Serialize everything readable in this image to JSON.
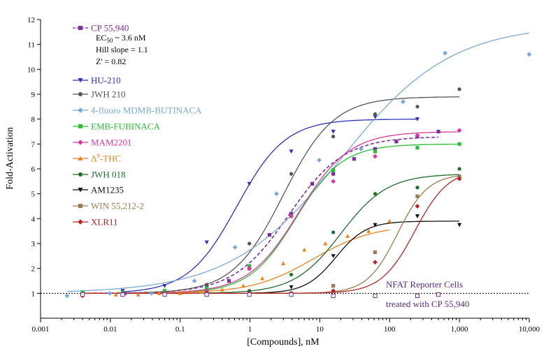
{
  "chart_data": {
    "type": "scatter",
    "xlabel": "[Compounds], nM",
    "ylabel": "Fold-Activation",
    "x_scale": "log",
    "xlim": [
      0.001,
      10000
    ],
    "ylim": [
      0,
      12
    ],
    "x_ticks": [
      "0.001",
      "0.01",
      "0.1",
      "1",
      "10",
      "100",
      "1,000",
      "10,000"
    ],
    "y_ticks": [
      "1",
      "2",
      "3",
      "4",
      "5",
      "6",
      "7",
      "8",
      "9",
      "10",
      "11",
      "12"
    ],
    "grid": false,
    "legend_position": "top-left",
    "baseline_y": 1,
    "stats": {
      "ec50_prefix": "EC",
      "ec50_sub": "50",
      "ec50_rest": " ~ 3.6 nM",
      "hill": "Hill slope = 1.1",
      "z": "Z' = 0.82"
    },
    "annotations": [
      "NFAT Reporter Cells",
      "treated with CP 55,940"
    ],
    "series": [
      {
        "name": "CP 55,940",
        "color": "#7b2f9e",
        "marker": "square",
        "dashed": true,
        "x": [
          0.004,
          0.016,
          0.06,
          0.24,
          0.5,
          0.98,
          1.9,
          3.9,
          7.8,
          15.6,
          31,
          62,
          125,
          250,
          500
        ],
        "y": [
          1.0,
          1.0,
          1.0,
          1.3,
          1.5,
          2.0,
          3.35,
          4.2,
          5.4,
          5.8,
          6.4,
          6.8,
          7.1,
          7.3,
          7.5
        ],
        "fit": {
          "bottom": 1.0,
          "top": 7.3,
          "ec50": 3.6,
          "hill": 1.1
        }
      },
      {
        "name": "HU-210",
        "color": "#2c32b5",
        "marker": "triangle-down",
        "x": [
          0.015,
          0.06,
          0.24,
          0.98,
          3.9,
          15.6,
          62,
          250
        ],
        "y": [
          1.1,
          1.3,
          3.05,
          5.4,
          6.7,
          7.5,
          8.1,
          8.0
        ],
        "fit": {
          "bottom": 1.0,
          "top": 8.0,
          "ec50": 0.65,
          "hill": 1.25
        }
      },
      {
        "name": "JWH 210",
        "color": "#555555",
        "marker": "circle",
        "x": [
          0.015,
          0.06,
          0.24,
          0.98,
          3.9,
          15.6,
          62,
          250,
          1000
        ],
        "y": [
          1.0,
          1.1,
          1.35,
          3.0,
          5.8,
          7.3,
          8.2,
          8.5,
          9.2
        ],
        "fit": {
          "bottom": 1.0,
          "top": 8.9,
          "ec50": 3.0,
          "hill": 1.2
        }
      },
      {
        "name": "4-fluoro MDMB-BUTINACA",
        "color": "#7aa9d6",
        "marker": "diamond",
        "x": [
          0.0024,
          0.0098,
          0.039,
          0.16,
          0.61,
          2.4,
          9.8,
          39,
          156,
          625,
          10000
        ],
        "y": [
          0.9,
          1.0,
          1.0,
          1.5,
          2.85,
          5.0,
          6.35,
          6.8,
          8.7,
          10.65,
          10.6
        ],
        "fit": {
          "bottom": 1.0,
          "top": 11.8,
          "ec50": 20.0,
          "hill": 0.55
        }
      },
      {
        "name": "EMB-FUBINACA",
        "color": "#2bbf3a",
        "marker": "square",
        "x": [
          0.004,
          0.015,
          0.06,
          0.24,
          0.98,
          3.9,
          15.6,
          62,
          250,
          1000
        ],
        "y": [
          1.05,
          1.05,
          1.1,
          1.2,
          2.1,
          4.1,
          5.95,
          6.7,
          6.85,
          7.0
        ],
        "fit": {
          "bottom": 1.0,
          "top": 7.0,
          "ec50": 4.5,
          "hill": 1.3
        }
      },
      {
        "name": "MAM2201",
        "color": "#d9399a",
        "marker": "diamond",
        "x": [
          0.015,
          0.06,
          0.24,
          0.98,
          3.9,
          15.6,
          62,
          250,
          1000
        ],
        "y": [
          1.0,
          1.0,
          1.1,
          2.0,
          4.1,
          5.5,
          6.5,
          7.35,
          7.55
        ],
        "fit": {
          "bottom": 1.0,
          "top": 7.5,
          "ec50": 5.0,
          "hill": 1.2
        }
      },
      {
        "name": "Δ9-THC",
        "name_main": "Δ",
        "name_sup": "9",
        "name_rest": "-THC",
        "color": "#e88420",
        "marker": "triangle-up",
        "x": [
          0.004,
          0.012,
          0.025,
          0.05,
          0.1,
          0.2,
          0.4,
          0.8,
          1.5,
          3,
          6,
          12,
          25,
          50,
          100
        ],
        "y": [
          0.95,
          0.95,
          0.95,
          1.0,
          1.0,
          1.05,
          1.15,
          1.3,
          1.6,
          2.2,
          2.75,
          3.0,
          3.3,
          3.5,
          3.9
        ],
        "fit": {
          "bottom": 1.0,
          "top": 3.75,
          "ec50": 8.0,
          "hill": 1.0
        }
      },
      {
        "name": "JWH 018",
        "color": "#1f6e2a",
        "marker": "circle",
        "x": [
          0.004,
          0.015,
          0.06,
          0.24,
          0.98,
          3.9,
          15.6,
          62,
          250,
          1000
        ],
        "y": [
          0.95,
          1.0,
          1.0,
          1.0,
          1.1,
          1.75,
          3.45,
          5.0,
          5.25,
          6.0
        ],
        "fit": {
          "bottom": 1.0,
          "top": 5.8,
          "ec50": 20.0,
          "hill": 1.3
        }
      },
      {
        "name": "AM1235",
        "color": "#111111",
        "marker": "triangle-down",
        "x": [
          0.004,
          0.015,
          0.06,
          0.24,
          0.98,
          3.9,
          15.6,
          62,
          250,
          1000
        ],
        "y": [
          0.95,
          0.95,
          1.0,
          1.0,
          1.0,
          1.25,
          2.5,
          3.75,
          4.1,
          3.75
        ],
        "fit": {
          "bottom": 1.0,
          "top": 3.9,
          "ec50": 17.0,
          "hill": 2.0
        }
      },
      {
        "name": "WIN 55,212-2",
        "color": "#9a7b4f",
        "marker": "square",
        "x": [
          0.004,
          0.015,
          0.06,
          0.24,
          0.98,
          3.9,
          15.6,
          62,
          250,
          1000
        ],
        "y": [
          0.95,
          0.95,
          1.0,
          1.0,
          1.0,
          1.0,
          1.3,
          2.65,
          4.9,
          5.7
        ],
        "fit": {
          "bottom": 1.0,
          "top": 5.8,
          "ec50": 130.0,
          "hill": 2.0
        }
      },
      {
        "name": "XLR11",
        "color": "#b52727",
        "marker": "diamond",
        "x": [
          0.004,
          0.015,
          0.06,
          0.24,
          0.98,
          3.9,
          15.6,
          62,
          250,
          1000
        ],
        "y": [
          0.9,
          0.95,
          0.95,
          1.0,
          1.0,
          1.0,
          1.1,
          2.25,
          4.5,
          5.6
        ],
        "fit": {
          "bottom": 1.0,
          "top": 6.0,
          "ec50": 230.0,
          "hill": 1.8
        }
      },
      {
        "name": "",
        "color": "#7b2f9e",
        "marker": "open-square",
        "in_legend": false,
        "x": [
          0.004,
          0.015,
          0.06,
          0.24,
          0.98,
          3.9,
          15.6,
          62,
          250,
          500
        ],
        "y": [
          0.95,
          0.95,
          0.95,
          0.95,
          0.95,
          0.95,
          0.9,
          0.9,
          0.9,
          0.95
        ]
      }
    ]
  }
}
